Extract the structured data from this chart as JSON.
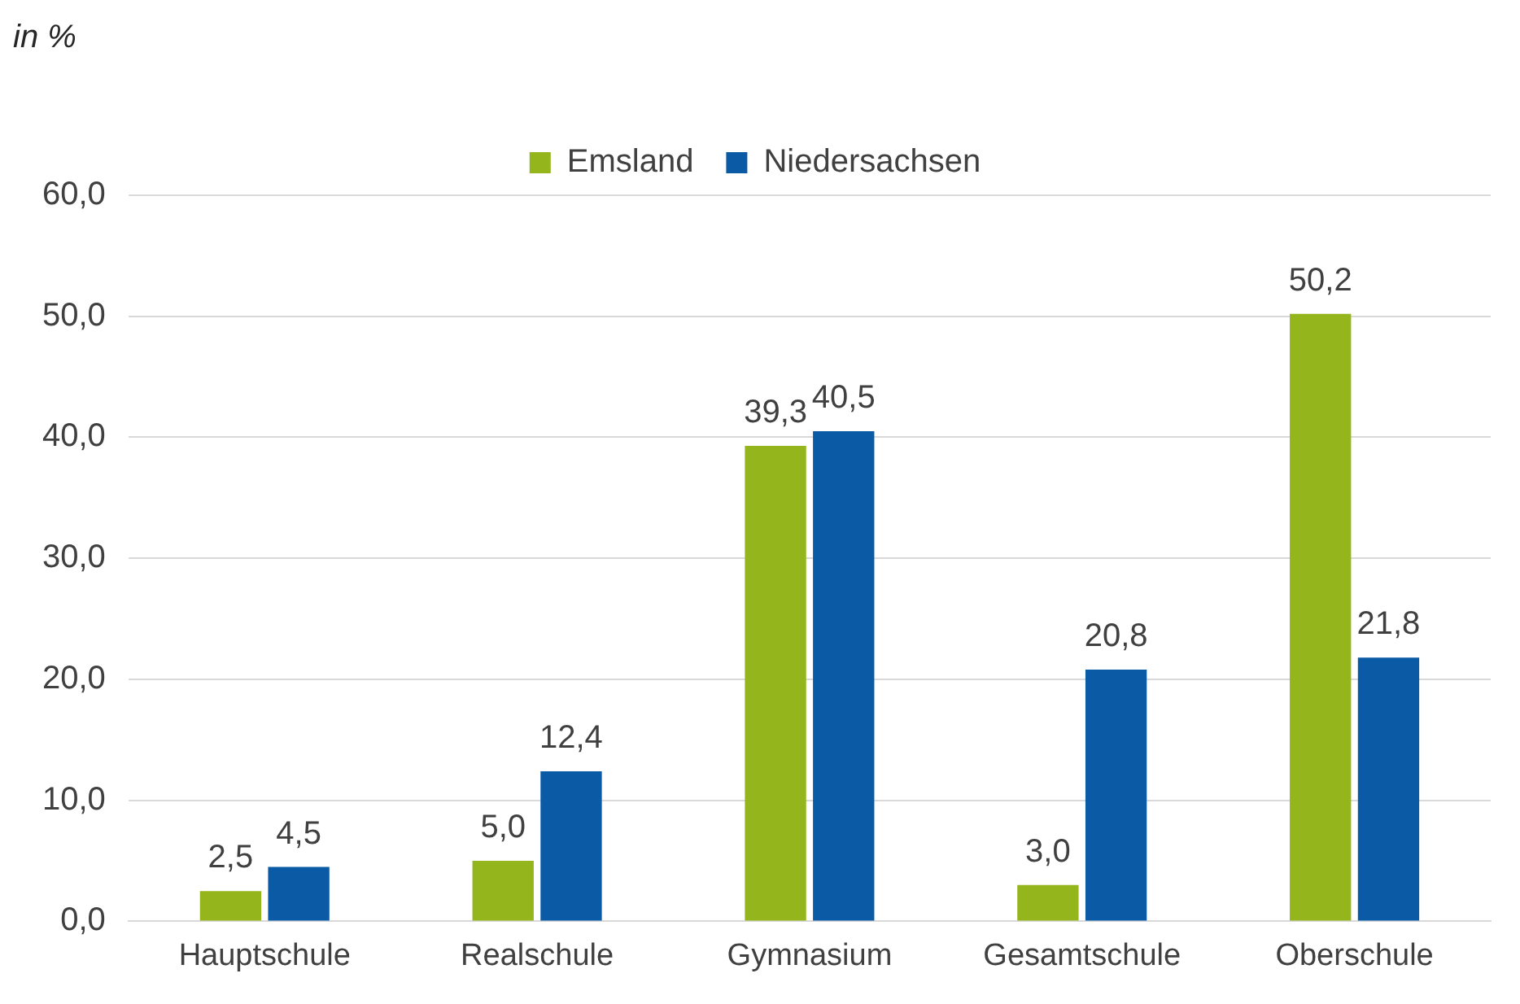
{
  "chart_data": {
    "type": "bar",
    "ylabel": "in %",
    "categories": [
      "Hauptschule",
      "Realschule",
      "Gymnasium",
      "Gesamtschule",
      "Oberschule"
    ],
    "series": [
      {
        "name": "Emsland",
        "color": "#95b51c",
        "values": [
          2.5,
          5.0,
          39.3,
          3.0,
          50.2
        ],
        "value_labels": [
          "2,5",
          "5,0",
          "39,3",
          "3,0",
          "50,2"
        ]
      },
      {
        "name": "Niedersachsen",
        "color": "#0a5aa5",
        "values": [
          4.5,
          12.4,
          40.5,
          20.8,
          21.8
        ],
        "value_labels": [
          "4,5",
          "12,4",
          "40,5",
          "20,8",
          "21,8"
        ]
      }
    ],
    "ylim": [
      0,
      60
    ],
    "yticks": [
      {
        "value": 0,
        "label": "0,0"
      },
      {
        "value": 10,
        "label": "10,0"
      },
      {
        "value": 20,
        "label": "20,0"
      },
      {
        "value": 30,
        "label": "30,0"
      },
      {
        "value": 40,
        "label": "40,0"
      },
      {
        "value": 50,
        "label": "50,0"
      },
      {
        "value": 60,
        "label": "60,0"
      }
    ],
    "grid": "y",
    "legend": "top"
  }
}
